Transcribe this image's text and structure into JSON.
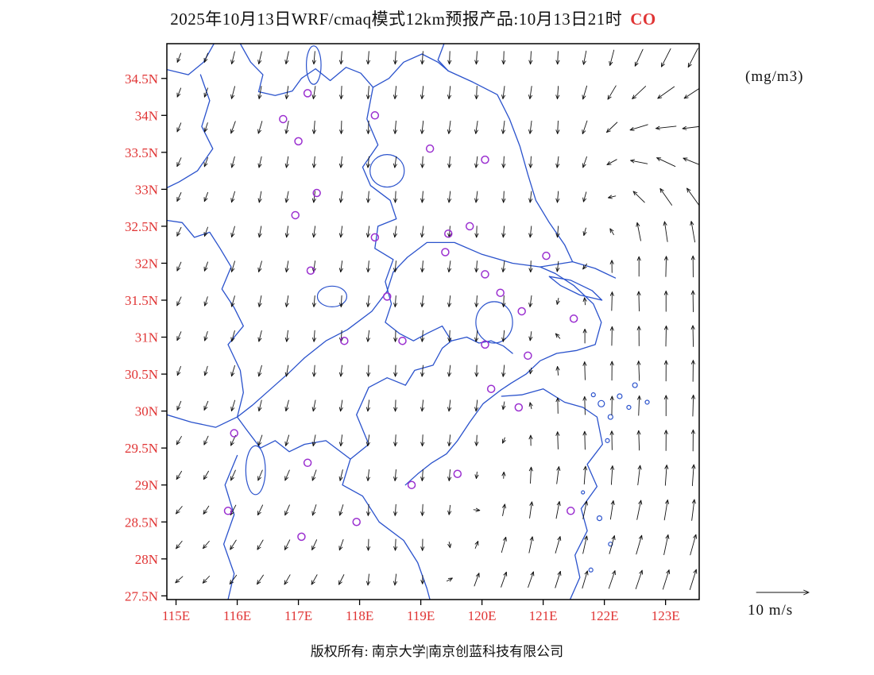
{
  "title": {
    "main": "2025年10月13日WRF/cmaq模式12km预报产品:10月13日21时",
    "species": "CO"
  },
  "units_label": "(mg/m3)",
  "copyright": "版权所有: 南京大学|南京创蓝科技有限公司",
  "wind_legend": {
    "label": "10 m/s",
    "value": 10,
    "units": "m/s"
  },
  "colors": {
    "axis_label": "#e03434",
    "title_species": "#e03434",
    "map_line": "#2a52cc",
    "marker": "#9b30d0",
    "arrow": "#111111",
    "border": "#000000"
  },
  "chart_data": {
    "type": "map",
    "title": "2025年10月13日WRF/cmaq模式12km预报产品:10月13日21时 CO",
    "units": "mg/m3",
    "extent": {
      "lon_min": 114.85,
      "lon_max": 123.55,
      "lat_min": 27.45,
      "lat_max": 34.97
    },
    "x_ticks": [
      {
        "value": 115,
        "label": "115E"
      },
      {
        "value": 116,
        "label": "116E"
      },
      {
        "value": 117,
        "label": "117E"
      },
      {
        "value": 118,
        "label": "118E"
      },
      {
        "value": 119,
        "label": "119E"
      },
      {
        "value": 120,
        "label": "120E"
      },
      {
        "value": 121,
        "label": "121E"
      },
      {
        "value": 122,
        "label": "122E"
      },
      {
        "value": 123,
        "label": "123E"
      }
    ],
    "y_ticks": [
      {
        "value": 34.5,
        "label": "34.5N"
      },
      {
        "value": 34,
        "label": "34N"
      },
      {
        "value": 33.5,
        "label": "33.5N"
      },
      {
        "value": 33,
        "label": "33N"
      },
      {
        "value": 32.5,
        "label": "32.5N"
      },
      {
        "value": 32,
        "label": "32N"
      },
      {
        "value": 31.5,
        "label": "31.5N"
      },
      {
        "value": 31,
        "label": "31N"
      },
      {
        "value": 30.5,
        "label": "30.5N"
      },
      {
        "value": 30,
        "label": "30N"
      },
      {
        "value": 29.5,
        "label": "29.5N"
      },
      {
        "value": 29,
        "label": "29N"
      },
      {
        "value": 28.5,
        "label": "28.5N"
      },
      {
        "value": 28,
        "label": "28N"
      },
      {
        "value": 27.5,
        "label": "27.5N"
      }
    ],
    "station_markers": [
      [
        117.15,
        34.3
      ],
      [
        116.75,
        33.95
      ],
      [
        118.25,
        34.0
      ],
      [
        117.0,
        33.65
      ],
      [
        119.15,
        33.55
      ],
      [
        120.05,
        33.4
      ],
      [
        117.3,
        32.95
      ],
      [
        116.95,
        32.65
      ],
      [
        118.25,
        32.35
      ],
      [
        119.45,
        32.4
      ],
      [
        119.8,
        32.5
      ],
      [
        119.4,
        32.15
      ],
      [
        121.05,
        32.1
      ],
      [
        120.05,
        31.85
      ],
      [
        117.2,
        31.9
      ],
      [
        118.45,
        31.55
      ],
      [
        120.3,
        31.6
      ],
      [
        120.65,
        31.35
      ],
      [
        121.5,
        31.25
      ],
      [
        117.75,
        30.95
      ],
      [
        118.7,
        30.95
      ],
      [
        120.05,
        30.9
      ],
      [
        120.75,
        30.75
      ],
      [
        120.15,
        30.3
      ],
      [
        120.6,
        30.05
      ],
      [
        115.95,
        29.7
      ],
      [
        117.15,
        29.3
      ],
      [
        119.6,
        29.15
      ],
      [
        118.85,
        29.0
      ],
      [
        117.95,
        28.5
      ],
      [
        115.85,
        28.65
      ],
      [
        117.05,
        28.3
      ],
      [
        121.45,
        28.65
      ]
    ],
    "map_paths": [
      {
        "name": "shandong-border-west",
        "points": [
          [
            114.85,
            34.62
          ],
          [
            115.2,
            34.55
          ],
          [
            115.45,
            34.72
          ],
          [
            115.62,
            34.97
          ]
        ]
      },
      {
        "name": "shandong-border-east",
        "points": [
          [
            116.05,
            34.97
          ],
          [
            116.22,
            34.72
          ],
          [
            116.42,
            34.55
          ],
          [
            116.35,
            34.32
          ],
          [
            116.62,
            34.27
          ],
          [
            116.9,
            34.33
          ],
          [
            117.05,
            34.5
          ],
          [
            117.28,
            34.63
          ],
          [
            117.52,
            34.47
          ],
          [
            117.78,
            34.65
          ],
          [
            118.02,
            34.57
          ],
          [
            118.22,
            34.38
          ],
          [
            118.48,
            34.5
          ],
          [
            118.72,
            34.72
          ],
          [
            119.02,
            34.83
          ],
          [
            119.28,
            34.72
          ],
          [
            119.45,
            34.6
          ]
        ]
      },
      {
        "name": "coastline-north",
        "points": [
          [
            119.38,
            34.97
          ],
          [
            119.28,
            34.75
          ],
          [
            119.45,
            34.6
          ],
          [
            119.85,
            34.45
          ],
          [
            120.25,
            34.28
          ],
          [
            120.45,
            33.95
          ],
          [
            120.62,
            33.58
          ],
          [
            120.75,
            33.2
          ],
          [
            120.88,
            32.85
          ],
          [
            121.1,
            32.55
          ],
          [
            121.35,
            32.25
          ],
          [
            121.48,
            32.02
          ],
          [
            121.85,
            31.93
          ],
          [
            122.18,
            31.8
          ]
        ]
      },
      {
        "name": "yangtze-river",
        "points": [
          [
            114.85,
            29.95
          ],
          [
            115.25,
            29.85
          ],
          [
            115.65,
            29.78
          ],
          [
            116.0,
            29.92
          ],
          [
            116.25,
            30.08
          ],
          [
            116.55,
            30.3
          ],
          [
            116.85,
            30.52
          ],
          [
            117.1,
            30.72
          ],
          [
            117.45,
            30.95
          ],
          [
            117.8,
            31.1
          ],
          [
            118.2,
            31.35
          ],
          [
            118.45,
            31.62
          ],
          [
            118.55,
            31.88
          ],
          [
            118.78,
            32.08
          ],
          [
            119.1,
            32.28
          ],
          [
            119.55,
            32.28
          ],
          [
            120.0,
            32.12
          ],
          [
            120.5,
            32.0
          ],
          [
            120.95,
            31.95
          ],
          [
            121.48,
            32.02
          ]
        ]
      },
      {
        "name": "estuary-south-coast",
        "points": [
          [
            120.95,
            31.95
          ],
          [
            121.2,
            31.86
          ],
          [
            121.5,
            31.7
          ],
          [
            121.82,
            31.45
          ],
          [
            121.95,
            31.2
          ],
          [
            121.85,
            30.9
          ],
          [
            121.55,
            30.82
          ],
          [
            121.22,
            30.78
          ],
          [
            120.95,
            30.68
          ],
          [
            120.72,
            30.5
          ],
          [
            120.48,
            30.38
          ],
          [
            120.3,
            30.28
          ]
        ]
      },
      {
        "name": "hangzhou-bay-south-coast",
        "points": [
          [
            120.32,
            30.2
          ],
          [
            120.65,
            30.22
          ],
          [
            121.0,
            30.3
          ],
          [
            121.35,
            30.12
          ],
          [
            121.65,
            30.05
          ],
          [
            121.88,
            29.92
          ],
          [
            121.97,
            29.55
          ],
          [
            121.72,
            29.28
          ],
          [
            121.88,
            28.98
          ],
          [
            121.62,
            28.68
          ],
          [
            121.72,
            28.38
          ],
          [
            121.52,
            28.05
          ],
          [
            121.6,
            27.75
          ],
          [
            121.44,
            27.45
          ]
        ]
      },
      {
        "name": "chongming-island",
        "points": [
          [
            121.1,
            31.82
          ],
          [
            121.45,
            31.77
          ],
          [
            121.8,
            31.63
          ],
          [
            121.96,
            31.5
          ],
          [
            121.6,
            31.57
          ],
          [
            121.28,
            31.7
          ],
          [
            121.1,
            31.82
          ]
        ]
      },
      {
        "name": "jiangsu-anhui-border",
        "points": [
          [
            118.22,
            34.38
          ],
          [
            118.12,
            33.95
          ],
          [
            118.3,
            33.6
          ],
          [
            118.05,
            33.3
          ],
          [
            118.18,
            33.05
          ],
          [
            118.5,
            32.85
          ],
          [
            118.6,
            32.6
          ],
          [
            118.3,
            32.5
          ],
          [
            118.25,
            32.2
          ],
          [
            118.55,
            32.05
          ],
          [
            118.42,
            31.75
          ],
          [
            118.52,
            31.45
          ],
          [
            118.42,
            31.2
          ],
          [
            118.65,
            31.05
          ],
          [
            118.88,
            30.95
          ],
          [
            119.1,
            31.05
          ],
          [
            119.35,
            31.15
          ],
          [
            119.5,
            30.95
          ],
          [
            119.75,
            31.0
          ],
          [
            119.95,
            30.92
          ],
          [
            120.15,
            30.95
          ],
          [
            120.35,
            30.88
          ],
          [
            120.5,
            30.78
          ]
        ]
      },
      {
        "name": "henan-anhui-border",
        "points": [
          [
            115.4,
            34.55
          ],
          [
            115.55,
            34.2
          ],
          [
            115.42,
            33.85
          ],
          [
            115.6,
            33.55
          ],
          [
            115.35,
            33.25
          ],
          [
            115.05,
            33.1
          ],
          [
            114.85,
            33.02
          ]
        ]
      },
      {
        "name": "anhui-hubei-border",
        "points": [
          [
            114.85,
            32.58
          ],
          [
            115.1,
            32.55
          ],
          [
            115.3,
            32.35
          ],
          [
            115.55,
            32.42
          ],
          [
            115.72,
            32.2
          ],
          [
            115.9,
            31.95
          ],
          [
            115.75,
            31.65
          ],
          [
            115.95,
            31.4
          ],
          [
            116.1,
            31.15
          ],
          [
            115.85,
            30.9
          ],
          [
            116.05,
            30.55
          ],
          [
            116.1,
            30.25
          ],
          [
            116.0,
            29.92
          ]
        ]
      },
      {
        "name": "zhejiang-south-border",
        "points": [
          [
            118.15,
            30.32
          ],
          [
            117.95,
            29.95
          ],
          [
            118.15,
            29.55
          ],
          [
            117.85,
            29.35
          ],
          [
            117.72,
            29.0
          ],
          [
            118.05,
            28.85
          ],
          [
            118.32,
            28.5
          ],
          [
            118.72,
            28.25
          ],
          [
            118.95,
            27.95
          ],
          [
            119.1,
            27.6
          ],
          [
            119.15,
            27.45
          ]
        ]
      },
      {
        "name": "jiangxi-anhui-border",
        "points": [
          [
            117.85,
            29.35
          ],
          [
            117.45,
            29.6
          ],
          [
            117.1,
            29.55
          ],
          [
            116.85,
            29.45
          ],
          [
            116.62,
            29.6
          ],
          [
            116.38,
            29.5
          ],
          [
            116.15,
            29.75
          ],
          [
            116.0,
            29.92
          ]
        ]
      },
      {
        "name": "qiantang-river",
        "points": [
          [
            120.3,
            30.28
          ],
          [
            120.02,
            30.1
          ],
          [
            119.8,
            29.85
          ],
          [
            119.6,
            29.6
          ],
          [
            119.42,
            29.42
          ],
          [
            119.18,
            29.3
          ],
          [
            118.95,
            29.15
          ],
          [
            118.75,
            29.0
          ]
        ]
      },
      {
        "name": "jiangxi-interior-border",
        "points": [
          [
            116.0,
            29.4
          ],
          [
            115.8,
            29.0
          ],
          [
            115.95,
            28.6
          ],
          [
            115.78,
            28.2
          ],
          [
            115.95,
            27.8
          ],
          [
            115.85,
            27.45
          ]
        ]
      },
      {
        "name": "anhui-zhejiang-north-border",
        "points": [
          [
            118.15,
            30.32
          ],
          [
            118.45,
            30.45
          ],
          [
            118.75,
            30.35
          ],
          [
            118.9,
            30.55
          ],
          [
            119.2,
            30.62
          ],
          [
            119.35,
            30.85
          ],
          [
            119.5,
            30.95
          ]
        ]
      }
    ],
    "lakes": [
      {
        "name": "hongze-lake",
        "c": [
          118.45,
          33.25
        ],
        "rx": 0.28,
        "ry": 0.22
      },
      {
        "name": "weishan-lake",
        "c": [
          117.25,
          34.68
        ],
        "rx": 0.12,
        "ry": 0.26
      },
      {
        "name": "taihu-lake",
        "c": [
          120.2,
          31.2
        ],
        "rx": 0.3,
        "ry": 0.28
      },
      {
        "name": "chaohu-lake",
        "c": [
          117.55,
          31.55
        ],
        "rx": 0.24,
        "ry": 0.14
      },
      {
        "name": "poyang-lake",
        "c": [
          116.3,
          29.2
        ],
        "rx": 0.16,
        "ry": 0.33
      }
    ],
    "islands": [
      [
        121.95,
        30.1,
        4
      ],
      [
        122.25,
        30.2,
        3
      ],
      [
        122.5,
        30.35,
        3
      ],
      [
        122.1,
        29.92,
        3
      ],
      [
        122.4,
        30.05,
        2.5
      ],
      [
        121.82,
        30.22,
        2.5
      ],
      [
        122.7,
        30.12,
        2.5
      ],
      [
        122.05,
        29.6,
        2.5
      ],
      [
        121.92,
        28.55,
        3
      ],
      [
        122.1,
        28.2,
        2.5
      ],
      [
        121.78,
        27.85,
        2.5
      ],
      [
        121.65,
        28.9,
        2
      ]
    ],
    "wind_field": {
      "description": "Northerly flow over land turning to southerly (up-pointing) flow over the sea east of a NE-SW oriented transition line; anticyclonic turning in the far northeast corner; max vector ~10 m/s over open water.",
      "grid": {
        "lon0": 115.05,
        "lon1": 123.45,
        "nx": 20,
        "lat0": 27.72,
        "lat1": 34.78,
        "ny": 16
      },
      "bLon_base": 119.55,
      "bLon_slope": 0.55,
      "bLon_max": 122.1,
      "blend_width": 0.7,
      "land_dir": -95,
      "west_ref": 117.6,
      "west_rate": 7,
      "sw_lat": 30.2,
      "sw_rate": 9,
      "sea_dir": 90,
      "rot_lat": 32.3,
      "rot_rate": 62,
      "se_lat": 29.6,
      "se_rate": 10,
      "len_land": 14,
      "len_land_north": 16,
      "len_land_west": 12,
      "len_sea_base": 20,
      "len_sea_rate": 2.2,
      "len_sea_max": 7,
      "jitter_deg": 5
    },
    "scale_vector": {
      "value": 10,
      "units": "m/s"
    }
  }
}
